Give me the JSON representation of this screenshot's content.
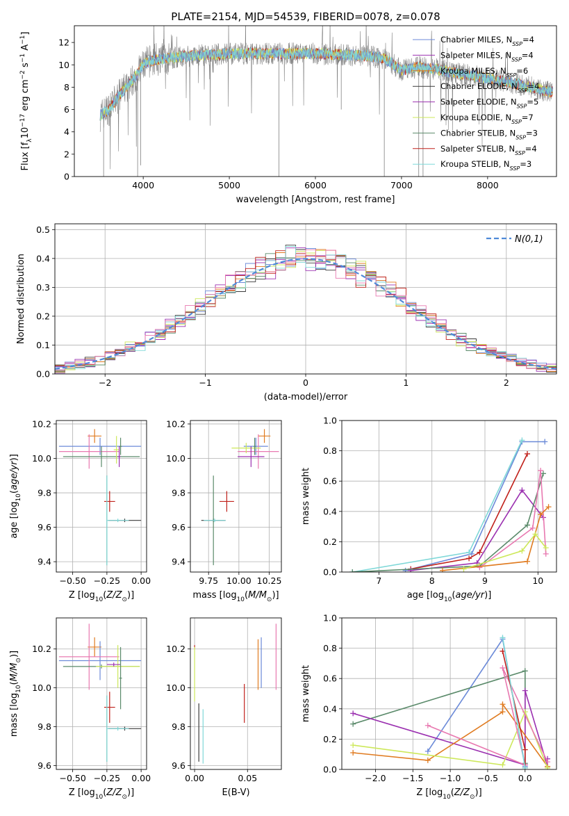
{
  "figure_title": "PLATE=2154, MJD=54539, FIBERID=0078, z=0.078",
  "colors": {
    "chabrier_miles": "#6b8ad8",
    "salpeter_miles": "#9b30b0",
    "kroupa_miles": "#e07b20",
    "chabrier_elodie": "#3a3a3a",
    "salpeter_elodie": "#9b30b0",
    "kroupa_elodie": "#cde85a",
    "chabrier_stelib": "#5a8a6a",
    "salpeter_stelib": "#c0201a",
    "kroupa_stelib": "#7fd8d8",
    "pink": "#e878b0",
    "data": "#808080",
    "gaussian": "#4f8ad8",
    "grid": "#b0b0b0"
  },
  "chart_data": [
    {
      "id": "spectrum",
      "type": "line",
      "xlabel": "wavelength [Angstrom, rest frame]",
      "ylabel": "Flux [f_λ10^-17 erg cm^-2 s^-1 A^-1]",
      "xlim": [
        3200,
        8800
      ],
      "ylim": [
        0,
        13.5
      ],
      "xticks": [
        4000,
        5000,
        6000,
        7000,
        8000
      ],
      "yticks": [
        0,
        2,
        4,
        6,
        8,
        10,
        12
      ],
      "grid": false,
      "legend_placement": "right",
      "continuum": {
        "x": [
          3500,
          3600,
          3700,
          3800,
          3900,
          4000,
          4100,
          4300,
          4500,
          4800,
          5000,
          5300,
          5600,
          6000,
          6300,
          6600,
          6800,
          7000,
          7100,
          7200,
          7400,
          7600,
          8000,
          8400,
          8700
        ],
        "y": [
          5.5,
          6.0,
          7.0,
          8.0,
          8.8,
          10.0,
          10.4,
          10.6,
          10.8,
          10.9,
          11.0,
          11.0,
          11.0,
          11.0,
          10.9,
          10.8,
          10.6,
          9.5,
          9.7,
          9.8,
          9.6,
          9.3,
          8.8,
          8.2,
          7.6
        ]
      },
      "legend": [
        {
          "label": "Chabrier MILES, N_SSP=4",
          "color_key": "chabrier_miles"
        },
        {
          "label": "Salpeter MILES, N_SSP=4",
          "color_key": "salpeter_miles"
        },
        {
          "label": "Kroupa MILES, N_SSP=6",
          "color_key": "kroupa_miles"
        },
        {
          "label": "Chabrier ELODIE, N_SSP=4",
          "color_key": "chabrier_elodie"
        },
        {
          "label": "Salpeter ELODIE, N_SSP=5",
          "color_key": "salpeter_elodie"
        },
        {
          "label": "Kroupa ELODIE, N_SSP=7",
          "color_key": "kroupa_elodie"
        },
        {
          "label": "Chabrier STELIB, N_SSP=3",
          "color_key": "chabrier_stelib"
        },
        {
          "label": "Salpeter STELIB, N_SSP=4",
          "color_key": "salpeter_stelib"
        },
        {
          "label": "Kroupa STELIB, N_SSP=3",
          "color_key": "kroupa_stelib"
        }
      ]
    },
    {
      "id": "residuals",
      "type": "line",
      "xlabel": "(data-model)/error",
      "ylabel": "Normed distribution",
      "xlim": [
        -2.5,
        2.5
      ],
      "ylim": [
        0,
        0.52
      ],
      "xticks": [
        -2,
        -1,
        0,
        1,
        2
      ],
      "yticks": [
        0.0,
        0.1,
        0.2,
        0.3,
        0.4,
        0.5
      ],
      "grid": true,
      "legend_placement": "top-right",
      "gaussian_label": "N(0,1)",
      "hist_bin_width": 0.1,
      "hist_start": -2.5
    },
    {
      "id": "age_vs_Z",
      "type": "scatter",
      "xlabel": "Z [log10(Z/Z⊙)]",
      "ylabel": "age [log10(age/yr)]",
      "xlim": [
        -0.62,
        0.04
      ],
      "ylim": [
        9.34,
        10.22
      ],
      "xticks": [
        -0.5,
        -0.25,
        0.0
      ],
      "yticks": [
        9.4,
        9.6,
        9.8,
        10.0,
        10.2
      ],
      "grid": true,
      "points": [
        {
          "x": -0.34,
          "y": 10.13,
          "xerr": 0.05,
          "yerr": 0.04,
          "color_key": "kroupa_miles"
        },
        {
          "x": -0.3,
          "y": 10.07,
          "xerr": 0.3,
          "yerr": 0.05,
          "color_key": "chabrier_miles"
        },
        {
          "x": -0.38,
          "y": 10.04,
          "xerr": 0.22,
          "yerr": 0.1,
          "color_key": "pink"
        },
        {
          "x": -0.29,
          "y": 10.01,
          "xerr": 0.28,
          "yerr": 0.06,
          "color_key": "chabrier_stelib"
        },
        {
          "x": -0.18,
          "y": 10.05,
          "xerr": 0.02,
          "yerr": 0.08,
          "color_key": "kroupa_elodie"
        },
        {
          "x": -0.16,
          "y": 10.01,
          "xerr": 0.01,
          "yerr": 0.06,
          "color_key": "salpeter_miles"
        },
        {
          "x": -0.15,
          "y": 10.07,
          "xerr": 0.01,
          "yerr": 0.05,
          "color_key": "chabrier_stelib"
        },
        {
          "x": -0.23,
          "y": 9.75,
          "xerr": 0.04,
          "yerr": 0.06,
          "color_key": "salpeter_stelib"
        },
        {
          "x": -0.12,
          "y": 9.64,
          "xerr": 0.12,
          "yerr": 0.01,
          "color_key": "chabrier_elodie"
        },
        {
          "x": -0.25,
          "y": 9.64,
          "xerr": 0.0,
          "yerr": 0.26,
          "color_key": "chabrier_stelib"
        },
        {
          "x": -0.17,
          "y": 9.64,
          "xerr": 0.08,
          "yerr": 0.01,
          "color_key": "kroupa_stelib"
        },
        {
          "x": -0.25,
          "y": 9.64,
          "xerr": 0.0,
          "yerr": 0.26,
          "color_key": "kroupa_stelib"
        }
      ]
    },
    {
      "id": "age_vs_mass",
      "type": "scatter",
      "xlabel": "mass [log10(M/M⊙)]",
      "ylabel": "",
      "xlim": [
        9.6,
        10.35
      ],
      "ylim": [
        9.34,
        10.22
      ],
      "xticks": [
        9.75,
        10.0,
        10.25
      ],
      "yticks": [
        9.4,
        9.6,
        9.8,
        10.0,
        10.2
      ],
      "grid": true,
      "points": [
        {
          "x": 10.21,
          "y": 10.13,
          "xerr": 0.05,
          "yerr": 0.04,
          "color_key": "kroupa_miles"
        },
        {
          "x": 10.14,
          "y": 10.07,
          "xerr": 0.1,
          "yerr": 0.05,
          "color_key": "chabrier_miles"
        },
        {
          "x": 10.16,
          "y": 10.04,
          "xerr": 0.17,
          "yerr": 0.1,
          "color_key": "pink"
        },
        {
          "x": 10.06,
          "y": 10.06,
          "xerr": 0.12,
          "yerr": 0.03,
          "color_key": "kroupa_elodie"
        },
        {
          "x": 10.1,
          "y": 10.01,
          "xerr": 0.11,
          "yerr": 0.06,
          "color_key": "salpeter_miles"
        },
        {
          "x": 10.13,
          "y": 10.07,
          "xerr": 0.01,
          "yerr": 0.05,
          "color_key": "chabrier_stelib"
        },
        {
          "x": 9.9,
          "y": 9.75,
          "xerr": 0.06,
          "yerr": 0.06,
          "color_key": "salpeter_stelib"
        },
        {
          "x": 9.79,
          "y": 9.64,
          "xerr": 0.1,
          "yerr": 0.01,
          "color_key": "chabrier_elodie"
        },
        {
          "x": 9.79,
          "y": 9.64,
          "xerr": 0.0,
          "yerr": 0.26,
          "color_key": "chabrier_stelib"
        },
        {
          "x": 9.8,
          "y": 9.64,
          "xerr": 0.09,
          "yerr": 0.01,
          "color_key": "kroupa_stelib"
        }
      ]
    },
    {
      "id": "weight_vs_age",
      "type": "line",
      "xlabel": "age [log10(age/yr)]",
      "ylabel": "mass weight",
      "xlim": [
        6.3,
        10.35
      ],
      "ylim": [
        0,
        1.0
      ],
      "xticks": [
        7,
        8,
        9,
        10
      ],
      "yticks": [
        0.0,
        0.2,
        0.4,
        0.6,
        0.8,
        1.0
      ],
      "grid": true,
      "series": [
        {
          "color_key": "chabrier_miles",
          "x": [
            7.5,
            8.75,
            9.7,
            10.13
          ],
          "y": [
            0.01,
            0.12,
            0.86,
            0.86
          ]
        },
        {
          "color_key": "kroupa_stelib",
          "x": [
            6.5,
            8.7,
            9.7
          ],
          "y": [
            0.0,
            0.13,
            0.87
          ]
        },
        {
          "color_key": "salpeter_stelib",
          "x": [
            7.6,
            8.7,
            8.9,
            9.8
          ],
          "y": [
            0.02,
            0.09,
            0.13,
            0.78
          ]
        },
        {
          "color_key": "salpeter_miles",
          "x": [
            7.6,
            8.85,
            9.7,
            10.1
          ],
          "y": [
            0.01,
            0.06,
            0.54,
            0.36
          ]
        },
        {
          "color_key": "chabrier_stelib",
          "x": [
            6.5,
            8.9,
            9.8,
            10.1
          ],
          "y": [
            0.0,
            0.04,
            0.31,
            0.65
          ]
        },
        {
          "color_key": "pink",
          "x": [
            8.9,
            9.9,
            10.05,
            10.15
          ],
          "y": [
            0.03,
            0.29,
            0.67,
            0.12
          ]
        },
        {
          "color_key": "kroupa_miles",
          "x": [
            8.2,
            9.8,
            10.05,
            10.2
          ],
          "y": [
            0.01,
            0.07,
            0.38,
            0.43
          ]
        },
        {
          "color_key": "kroupa_elodie",
          "x": [
            8.6,
            9.7,
            9.95,
            10.15
          ],
          "y": [
            0.02,
            0.14,
            0.25,
            0.16
          ]
        }
      ]
    },
    {
      "id": "mass_vs_Z",
      "type": "scatter",
      "xlabel": "Z [log10(Z/Z⊙)]",
      "ylabel": "mass [log10(M/M⊙)]",
      "xlim": [
        -0.62,
        0.04
      ],
      "ylim": [
        9.58,
        10.36
      ],
      "xticks": [
        -0.5,
        -0.25,
        0.0
      ],
      "yticks": [
        9.6,
        9.8,
        10.0,
        10.2
      ],
      "grid": true,
      "points": [
        {
          "x": -0.34,
          "y": 10.21,
          "xerr": 0.05,
          "yerr": 0.05,
          "color_key": "kroupa_miles"
        },
        {
          "x": -0.3,
          "y": 10.14,
          "xerr": 0.3,
          "yerr": 0.1,
          "color_key": "chabrier_miles"
        },
        {
          "x": -0.38,
          "y": 10.16,
          "xerr": 0.22,
          "yerr": 0.17,
          "color_key": "pink"
        },
        {
          "x": -0.29,
          "y": 10.11,
          "xerr": 0.28,
          "yerr": 0.01,
          "color_key": "chabrier_stelib"
        },
        {
          "x": -0.17,
          "y": 10.11,
          "xerr": 0.16,
          "yerr": 0.11,
          "color_key": "kroupa_elodie"
        },
        {
          "x": -0.2,
          "y": 10.12,
          "xerr": 0.05,
          "yerr": 0.01,
          "color_key": "salpeter_miles"
        },
        {
          "x": -0.15,
          "y": 10.05,
          "xerr": 0.01,
          "yerr": 0.16,
          "color_key": "chabrier_stelib"
        },
        {
          "x": -0.23,
          "y": 9.9,
          "xerr": 0.04,
          "yerr": 0.08,
          "color_key": "salpeter_stelib"
        },
        {
          "x": -0.12,
          "y": 9.79,
          "xerr": 0.12,
          "yerr": 0.01,
          "color_key": "chabrier_elodie"
        },
        {
          "x": -0.25,
          "y": 9.79,
          "xerr": 0.0,
          "yerr": 0.17,
          "color_key": "chabrier_stelib"
        },
        {
          "x": -0.17,
          "y": 9.79,
          "xerr": 0.08,
          "yerr": 0.01,
          "color_key": "kroupa_stelib"
        },
        {
          "x": -0.25,
          "y": 9.79,
          "xerr": 0.0,
          "yerr": 0.17,
          "color_key": "kroupa_stelib"
        }
      ]
    },
    {
      "id": "mass_vs_ebv",
      "type": "scatter",
      "xlabel": "E(B-V)",
      "ylabel": "",
      "xlim": [
        -0.004,
        0.082
      ],
      "ylim": [
        9.58,
        10.36
      ],
      "xticks": [
        0.0,
        0.05
      ],
      "yticks": [
        9.6,
        9.8,
        10.0,
        10.2
      ],
      "grid": true,
      "points": [
        {
          "x": 0.0,
          "y": 10.21,
          "xerr": 0,
          "yerr": 0.01,
          "color_key": "salpeter_stelib"
        },
        {
          "x": 0.0,
          "y": 10.07,
          "xerr": 0,
          "yerr": 0.14,
          "color_key": "kroupa_elodie"
        },
        {
          "x": 0.004,
          "y": 9.77,
          "xerr": 0,
          "yerr": 0.15,
          "color_key": "chabrier_elodie"
        },
        {
          "x": 0.008,
          "y": 9.75,
          "xerr": 0,
          "yerr": 0.14,
          "color_key": "kroupa_stelib"
        },
        {
          "x": 0.047,
          "y": 9.92,
          "xerr": 0,
          "yerr": 0.1,
          "color_key": "salpeter_stelib"
        },
        {
          "x": 0.06,
          "y": 10.12,
          "xerr": 0,
          "yerr": 0.13,
          "color_key": "kroupa_miles"
        },
        {
          "x": 0.063,
          "y": 10.13,
          "xerr": 0,
          "yerr": 0.13,
          "color_key": "chabrier_miles"
        },
        {
          "x": 0.077,
          "y": 10.16,
          "xerr": 0,
          "yerr": 0.17,
          "color_key": "pink"
        }
      ]
    },
    {
      "id": "weight_vs_Z",
      "type": "line",
      "xlabel": "Z [log10(Z/Z⊙)]",
      "ylabel": "mass weight",
      "xlim": [
        -2.45,
        0.42
      ],
      "ylim": [
        0,
        1.0
      ],
      "xticks": [
        -2.0,
        -1.5,
        -1.0,
        -0.5,
        0.0
      ],
      "yticks": [
        0.0,
        0.2,
        0.4,
        0.6,
        0.8,
        1.0
      ],
      "grid": true,
      "series": [
        {
          "color_key": "chabrier_miles",
          "x": [
            -1.3,
            -0.3,
            0.0
          ],
          "y": [
            0.12,
            0.86,
            0.02
          ]
        },
        {
          "color_key": "chabrier_stelib",
          "x": [
            -2.3,
            0.0,
            0.0
          ],
          "y": [
            0.3,
            0.65,
            0.04
          ]
        },
        {
          "color_key": "salpeter_miles",
          "x": [
            -2.3,
            0.0,
            0.0,
            0.3,
            0.3
          ],
          "y": [
            0.37,
            0.03,
            0.52,
            0.02,
            0.07
          ]
        },
        {
          "color_key": "kroupa_miles",
          "x": [
            -2.3,
            -1.3,
            -0.3,
            -0.3,
            0.3
          ],
          "y": [
            0.11,
            0.06,
            0.38,
            0.43,
            0.02
          ]
        },
        {
          "color_key": "kroupa_elodie",
          "x": [
            -2.3,
            -0.3,
            0.0,
            0.3
          ],
          "y": [
            0.16,
            0.03,
            0.38,
            0.01
          ]
        },
        {
          "color_key": "pink",
          "x": [
            -1.3,
            0.0,
            -0.3,
            0.3
          ],
          "y": [
            0.29,
            0.03,
            0.67,
            0.05
          ]
        },
        {
          "color_key": "salpeter_stelib",
          "x": [
            -0.3,
            0.0,
            0.0
          ],
          "y": [
            0.78,
            0.13,
            0.01
          ]
        },
        {
          "color_key": "kroupa_stelib",
          "x": [
            -0.3,
            0.0
          ],
          "y": [
            0.87,
            0.01
          ]
        }
      ]
    }
  ]
}
